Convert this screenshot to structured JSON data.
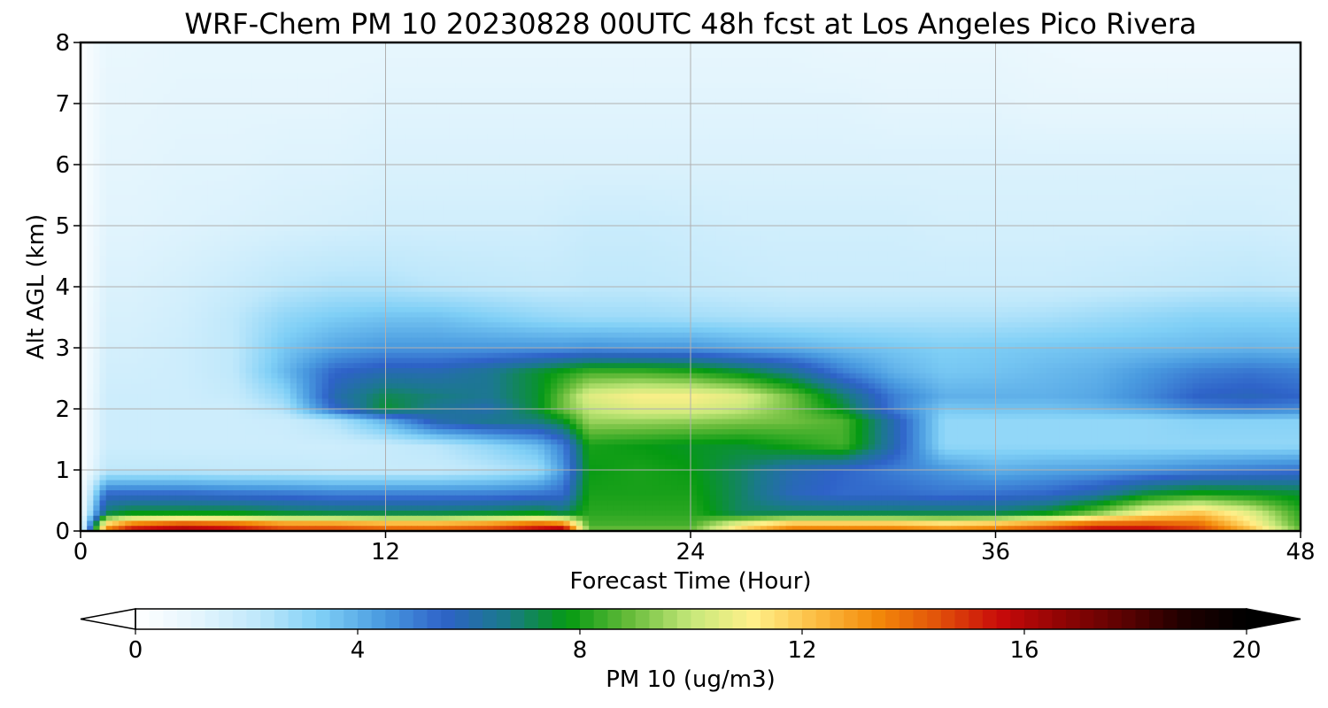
{
  "chart_data": {
    "type": "heatmap",
    "title": "WRF-Chem PM 10  20230828 00UTC 48h fcst at Los Angeles Pico Rivera",
    "xlabel": "Forecast Time (Hour)",
    "ylabel": "Alt AGL (km)",
    "xlim": [
      0,
      48
    ],
    "ylim": [
      0,
      8
    ],
    "xticks": [
      0,
      12,
      24,
      36,
      48
    ],
    "yticks": [
      0,
      1,
      2,
      3,
      4,
      5,
      6,
      7,
      8
    ],
    "grid": true,
    "colorbar": {
      "label": "PM 10  (ug/m3)",
      "range": [
        0,
        20
      ],
      "ticks": [
        0,
        4,
        8,
        12,
        16,
        20
      ],
      "extend": "both",
      "colors": [
        "#ffffff",
        "#e4f5fd",
        "#bfe8fb",
        "#7fcff6",
        "#4a9be0",
        "#2e62c8",
        "#1a7a8a",
        "#059a12",
        "#66bb3a",
        "#c6e87a",
        "#fff08a",
        "#fcbe44",
        "#f38a0a",
        "#e2520a",
        "#c80a0a",
        "#900404",
        "#5c0202",
        "#1e0000",
        "#000000"
      ]
    },
    "x": [
      0,
      1,
      2,
      4,
      6,
      8,
      10,
      12,
      14,
      16,
      18,
      19,
      20,
      22,
      24,
      26,
      28,
      30,
      32,
      34,
      36,
      38,
      40,
      42,
      44,
      46,
      48
    ],
    "y": [
      0,
      0.1,
      0.3,
      0.6,
      1.0,
      1.4,
      1.8,
      2.0,
      2.2,
      2.6,
      3.0,
      3.5,
      4.0,
      5.0,
      6.0,
      7.0,
      8.0
    ],
    "z": [
      [
        0.5,
        14,
        16,
        16.5,
        16,
        15,
        15,
        14.5,
        14.5,
        15,
        16,
        17,
        9,
        9,
        9,
        12,
        14,
        14,
        14,
        13.5,
        14,
        15,
        16,
        16,
        15,
        12.5,
        9
      ],
      [
        0.4,
        12,
        14,
        15,
        14.5,
        13.5,
        13.5,
        13,
        13,
        13.5,
        14.5,
        14,
        8.5,
        8.5,
        8.5,
        11,
        12.5,
        12.5,
        12.5,
        12,
        12.5,
        13.5,
        14.5,
        14.5,
        14,
        11.5,
        8.5
      ],
      [
        0.3,
        7,
        7.5,
        7.5,
        7.5,
        7.2,
        7,
        7,
        7,
        7.2,
        7.5,
        7,
        8.2,
        8.2,
        8.2,
        7,
        7,
        7,
        7,
        7,
        7,
        7.5,
        9,
        11,
        12,
        10.5,
        8.2
      ],
      [
        0.2,
        5.5,
        5.5,
        5.5,
        5.3,
        5.2,
        5,
        5,
        5,
        5,
        5.2,
        5.4,
        8,
        8,
        8,
        7,
        5.8,
        5.4,
        5.4,
        5.2,
        5.3,
        5.5,
        6.2,
        7.5,
        8,
        7.8,
        7.5
      ],
      [
        0.15,
        2.2,
        2.2,
        2.2,
        2.1,
        2.1,
        2,
        2,
        2,
        2.3,
        2.8,
        4.5,
        7.8,
        8,
        7.8,
        7,
        6,
        5.5,
        5,
        4.5,
        4,
        4.2,
        4.3,
        4.5,
        4.8,
        5,
        5.2
      ],
      [
        0.1,
        1.8,
        1.8,
        1.8,
        1.8,
        1.8,
        1.8,
        2,
        2.3,
        3,
        3.8,
        5,
        8,
        7.8,
        7.6,
        7.5,
        8,
        8.5,
        6,
        3,
        3,
        3,
        3,
        3,
        3,
        3,
        3
      ],
      [
        0.1,
        1.8,
        1.8,
        1.8,
        1.8,
        1.9,
        2.5,
        4,
        6,
        6.6,
        6.8,
        7.6,
        9.5,
        9.5,
        9.4,
        9.2,
        9,
        8.6,
        6,
        3,
        3,
        3,
        3,
        3,
        3.2,
        3.2,
        3.2
      ],
      [
        0.1,
        1.8,
        1.8,
        1.8,
        1.8,
        2.5,
        5.5,
        7.5,
        6.5,
        6,
        7.5,
        9,
        10,
        10.5,
        10.5,
        10,
        9,
        7.5,
        5,
        3.5,
        3.6,
        3.6,
        3.8,
        4.2,
        4.8,
        5,
        4.8
      ],
      [
        0.1,
        1.8,
        1.8,
        1.8,
        2,
        3,
        6,
        7.2,
        6.8,
        6.5,
        7.5,
        9,
        10.5,
        11,
        11,
        10.5,
        9,
        7,
        5,
        4,
        4,
        4,
        4.2,
        4.8,
        5.6,
        5.8,
        5.5
      ],
      [
        0.1,
        1.7,
        1.7,
        1.8,
        2.2,
        3.8,
        5.5,
        6,
        6,
        6.5,
        7.5,
        8,
        8.5,
        8.5,
        8.2,
        7.5,
        6.5,
        5,
        4,
        3.5,
        3.6,
        3.8,
        4,
        4.5,
        5,
        5.2,
        5
      ],
      [
        0.1,
        1.6,
        1.6,
        1.8,
        2.2,
        3.5,
        4.2,
        4.5,
        4.5,
        4.5,
        4.5,
        4.5,
        4.6,
        4.5,
        4.5,
        4.2,
        4,
        3.7,
        3.5,
        3.3,
        3.4,
        3.5,
        3.6,
        3.7,
        3.8,
        3.9,
        3.8
      ],
      [
        0.1,
        1.5,
        1.5,
        1.7,
        2.2,
        3,
        3.4,
        3.6,
        3.6,
        3.3,
        3,
        2.9,
        2.8,
        2.8,
        2.7,
        2.6,
        2.5,
        2.5,
        2.5,
        2.5,
        2.5,
        2.6,
        2.8,
        3,
        3.2,
        3.2,
        3.2
      ],
      [
        0.1,
        1.4,
        1.4,
        1.6,
        1.9,
        2.3,
        2.5,
        2.5,
        2.3,
        2.2,
        2.1,
        2.1,
        2.2,
        2.2,
        2.1,
        2,
        1.9,
        1.9,
        1.9,
        1.9,
        1.9,
        1.9,
        2,
        2.1,
        2.2,
        2.3,
        2.2
      ],
      [
        0.1,
        1.2,
        1.2,
        1.3,
        1.4,
        1.5,
        1.6,
        1.7,
        1.7,
        1.7,
        1.7,
        1.8,
        1.9,
        1.9,
        1.8,
        1.7,
        1.7,
        1.7,
        1.7,
        1.6,
        1.6,
        1.6,
        1.6,
        1.6,
        1.7,
        1.7,
        1.6
      ],
      [
        0.1,
        1.1,
        1.1,
        1.2,
        1.2,
        1.3,
        1.3,
        1.4,
        1.4,
        1.4,
        1.4,
        1.4,
        1.4,
        1.4,
        1.4,
        1.4,
        1.4,
        1.4,
        1.4,
        1.4,
        1.4,
        1.4,
        1.4,
        1.4,
        1.4,
        1.4,
        1.4
      ],
      [
        0.1,
        1,
        1,
        1.1,
        1.1,
        1.1,
        1.1,
        1.2,
        1.2,
        1.2,
        1.2,
        1.2,
        1.2,
        1.2,
        1.2,
        1.2,
        1.2,
        1.2,
        1.1,
        1.1,
        1.1,
        1,
        1,
        1,
        1,
        1,
        1
      ],
      [
        0.1,
        0.9,
        0.9,
        1,
        1,
        1,
        1,
        1,
        1,
        1,
        1,
        1,
        1,
        1,
        1,
        1,
        1,
        0.9,
        0.9,
        0.9,
        0.9,
        0.8,
        0.7,
        0.7,
        0.7,
        0.7,
        0.7
      ]
    ]
  }
}
